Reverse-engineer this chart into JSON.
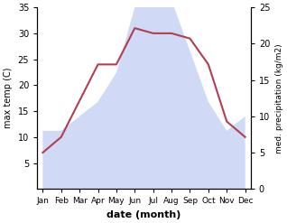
{
  "months": [
    "Jan",
    "Feb",
    "Mar",
    "Apr",
    "May",
    "Jun",
    "Jul",
    "Aug",
    "Sep",
    "Oct",
    "Nov",
    "Dec"
  ],
  "temperature": [
    7,
    10,
    17,
    24,
    24,
    31,
    30,
    30,
    29,
    24,
    13,
    10
  ],
  "precipitation": [
    8,
    8,
    10,
    12,
    16,
    25,
    32,
    26,
    19,
    12,
    8,
    10
  ],
  "temp_color": "#b04050",
  "precip_color": "#aabbee",
  "precip_alpha": 0.55,
  "temp_ylim": [
    0,
    35
  ],
  "precip_ylim": [
    0,
    25
  ],
  "temp_yticks": [
    5,
    10,
    15,
    20,
    25,
    30,
    35
  ],
  "precip_yticks": [
    0,
    5,
    10,
    15,
    20,
    25
  ],
  "xlabel": "date (month)",
  "ylabel_left": "max temp (C)",
  "ylabel_right": "med. precipitation (kg/m2)",
  "bg_color": "#ffffff"
}
